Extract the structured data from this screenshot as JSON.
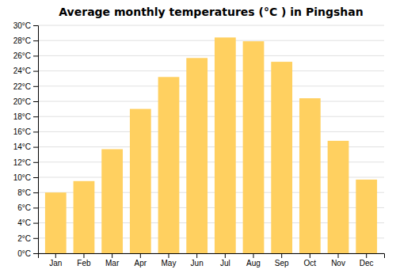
{
  "chart_data": {
    "type": "bar",
    "title": "Average monthly temperatures (°C ) in Pingshan",
    "categories": [
      "Jan",
      "Feb",
      "Mar",
      "Apr",
      "May",
      "Jun",
      "Jul",
      "Aug",
      "Sep",
      "Oct",
      "Nov",
      "Dec"
    ],
    "values": [
      8.0,
      9.5,
      13.7,
      19.0,
      23.2,
      25.7,
      28.4,
      27.9,
      25.2,
      20.4,
      14.8,
      9.7
    ],
    "color": "#FFD060",
    "ylim": [
      0,
      30
    ],
    "yticks": [
      {
        "value": 0,
        "label": "0°C"
      },
      {
        "value": 2,
        "label": "2°C"
      },
      {
        "value": 4,
        "label": "4°C"
      },
      {
        "value": 6,
        "label": "6°C"
      },
      {
        "value": 8,
        "label": "8°C"
      },
      {
        "value": 10,
        "label": "10°C"
      },
      {
        "value": 12,
        "label": "12°C"
      },
      {
        "value": 14,
        "label": "14°C"
      },
      {
        "value": 16,
        "label": "16°C"
      },
      {
        "value": 18,
        "label": "18°C"
      },
      {
        "value": 20,
        "label": "20°C"
      },
      {
        "value": 22,
        "label": "22°C"
      },
      {
        "value": 24,
        "label": "24°C"
      },
      {
        "value": 26,
        "label": "26°C"
      },
      {
        "value": 28,
        "label": "28°C"
      },
      {
        "value": 30,
        "label": "30°C"
      }
    ],
    "grid": true
  }
}
